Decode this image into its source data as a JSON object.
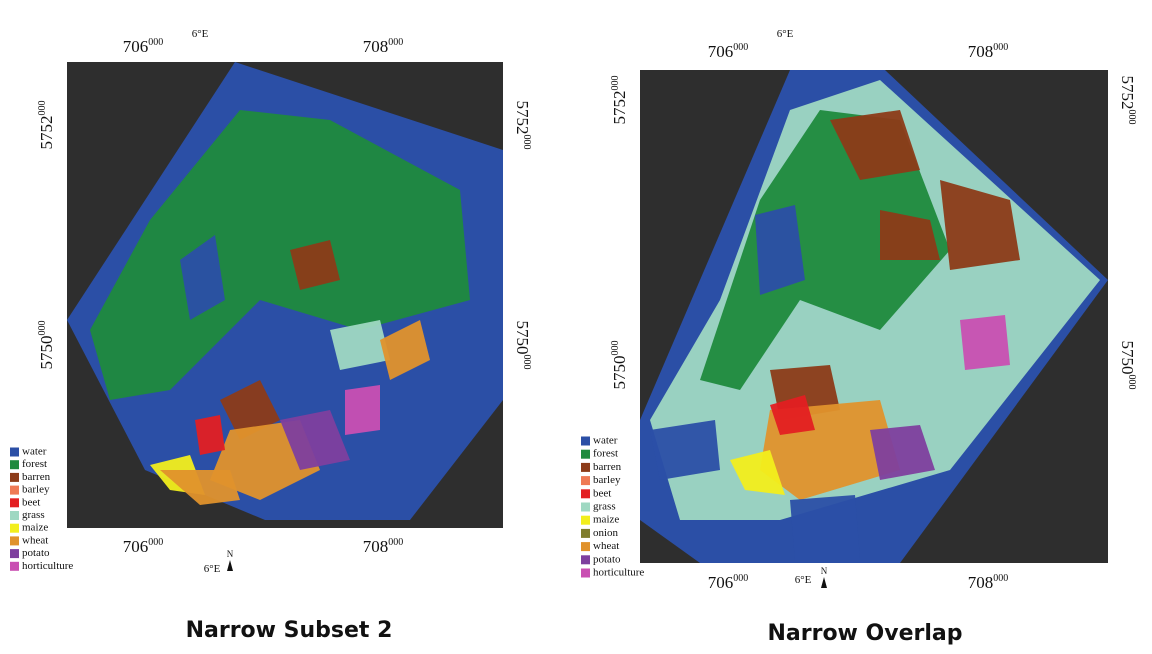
{
  "panels": [
    {
      "caption": "Narrow Subset 2",
      "top_meridian": "6°E",
      "top_labels": [
        {
          "main": "706",
          "sup": "000"
        },
        {
          "main": "708",
          "sup": "000"
        }
      ],
      "left_labels": [
        {
          "main": "5752",
          "sup": "000"
        },
        {
          "main": "5750",
          "sup": "000"
        }
      ],
      "right_labels": [
        {
          "main": "5752",
          "sup": "000"
        },
        {
          "main": "5750",
          "sup": "000"
        }
      ],
      "bottom_labels": [
        {
          "main": "706",
          "sup": "000"
        },
        {
          "main": "708",
          "sup": "000"
        }
      ],
      "bottom_meridian": "6°E",
      "north": "N",
      "legend": [
        {
          "name": "water",
          "color": "#2b4fa6"
        },
        {
          "name": "forest",
          "color": "#1f8a3d"
        },
        {
          "name": "barren",
          "color": "#8c3b18"
        },
        {
          "name": "barley",
          "color": "#ef7a55"
        },
        {
          "name": "beet",
          "color": "#e31f22"
        },
        {
          "name": "grass",
          "color": "#9fd8c2"
        },
        {
          "name": "maize",
          "color": "#f2ee1c"
        },
        {
          "name": "wheat",
          "color": "#e0922c"
        },
        {
          "name": "potato",
          "color": "#7e3f9e"
        },
        {
          "name": "horticulture",
          "color": "#c94fb2"
        }
      ]
    },
    {
      "caption": "Narrow Overlap",
      "top_meridian": "6°E",
      "top_labels": [
        {
          "main": "706",
          "sup": "000"
        },
        {
          "main": "708",
          "sup": "000"
        }
      ],
      "left_labels": [
        {
          "main": "5752",
          "sup": "000"
        },
        {
          "main": "5750",
          "sup": "000"
        }
      ],
      "right_labels": [
        {
          "main": "5752",
          "sup": "000"
        },
        {
          "main": "5750",
          "sup": "000"
        }
      ],
      "bottom_labels": [
        {
          "main": "706",
          "sup": "000"
        },
        {
          "main": "708",
          "sup": "000"
        }
      ],
      "bottom_meridian": "6°E",
      "north": "N",
      "legend": [
        {
          "name": "water",
          "color": "#2b4fa6"
        },
        {
          "name": "forest",
          "color": "#1f8a3d"
        },
        {
          "name": "barren",
          "color": "#8c3b18"
        },
        {
          "name": "barley",
          "color": "#ef7a55"
        },
        {
          "name": "beet",
          "color": "#e31f22"
        },
        {
          "name": "grass",
          "color": "#9fd8c2"
        },
        {
          "name": "maize",
          "color": "#f2ee1c"
        },
        {
          "name": "onion",
          "color": "#7f7d2c"
        },
        {
          "name": "wheat",
          "color": "#e0922c"
        },
        {
          "name": "potato",
          "color": "#7e3f9e"
        },
        {
          "name": "horticulture",
          "color": "#c94fb2"
        }
      ]
    }
  ]
}
